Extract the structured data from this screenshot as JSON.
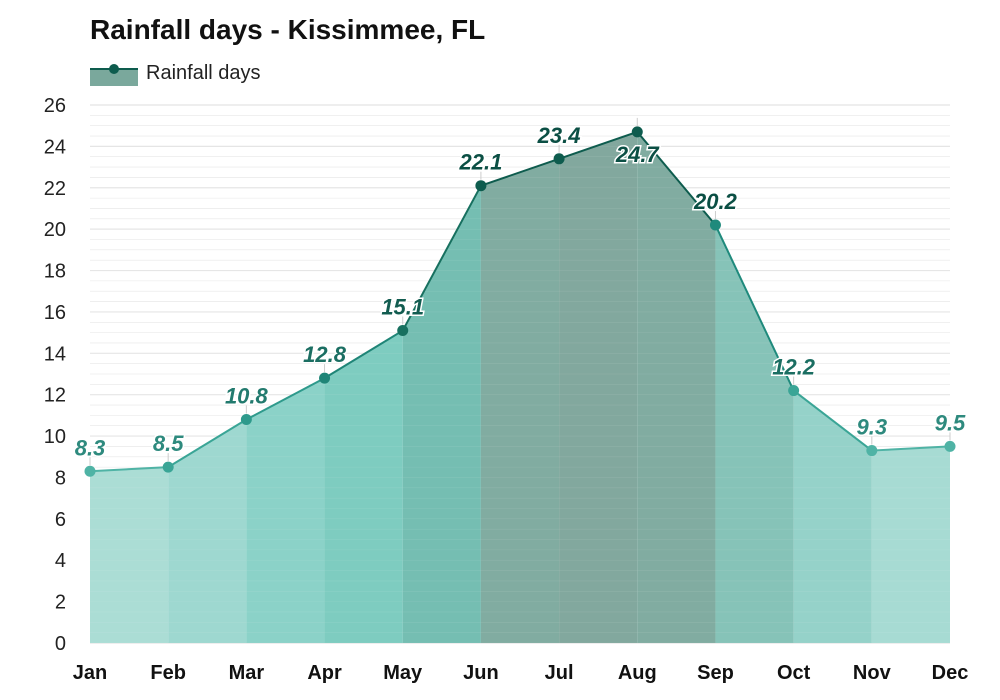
{
  "chart_data": {
    "type": "area",
    "title": "Rainfall days - Kissimmee, FL",
    "legend": {
      "entries": [
        "Rainfall days"
      ],
      "placement": "top-left"
    },
    "categories": [
      "Jan",
      "Feb",
      "Mar",
      "Apr",
      "May",
      "Jun",
      "Jul",
      "Aug",
      "Sep",
      "Oct",
      "Nov",
      "Dec"
    ],
    "series": [
      {
        "name": "Rainfall days",
        "values": [
          8.3,
          8.5,
          10.8,
          12.8,
          15.1,
          22.1,
          23.4,
          24.7,
          20.2,
          12.2,
          9.3,
          9.5
        ]
      }
    ],
    "data_labels": [
      "8.3",
      "8.5",
      "10.8",
      "12.8",
      "15.1",
      "22.1",
      "23.4",
      "24.7",
      "20.2",
      "12.2",
      "9.3",
      "9.5"
    ],
    "yticks": [
      "0",
      "2",
      "4",
      "6",
      "8",
      "10",
      "12",
      "14",
      "16",
      "18",
      "20",
      "22",
      "24",
      "26"
    ],
    "ylim": [
      0,
      26
    ],
    "xlabel": "",
    "ylabel": "",
    "grid": true,
    "colors": {
      "band_fills": [
        "#a6dbd3",
        "#99d6cd",
        "#85d0c5",
        "#77c9bd",
        "#6ebbae",
        "#7aa89c",
        "#7ba399",
        "#7aa89c",
        "#80c0b4",
        "#8fd0c6",
        "#a2d9d1",
        "#a6dbd3"
      ],
      "line_colors": [
        "#4fb3a5",
        "#3aa596",
        "#2e9a8c",
        "#1f8577",
        "#17705f",
        "#0e5c4e",
        "#0e5c4e",
        "#0e5c4e",
        "#1f8a7c",
        "#3aa596",
        "#4fb3a5",
        "#4fb3a5"
      ],
      "label_colors": [
        "#2e8a7e",
        "#2e8a7e",
        "#227a6e",
        "#1b6e62",
        "#125c50",
        "#0b4f44",
        "#0b4f44",
        "#0b4f44",
        "#0b4f44",
        "#1b6e62",
        "#2e8a7e",
        "#2e8a7e"
      ],
      "gridline": "#e4e4e4",
      "legend_line": "#0e5c4e",
      "legend_fill": "#7aa89c"
    }
  }
}
